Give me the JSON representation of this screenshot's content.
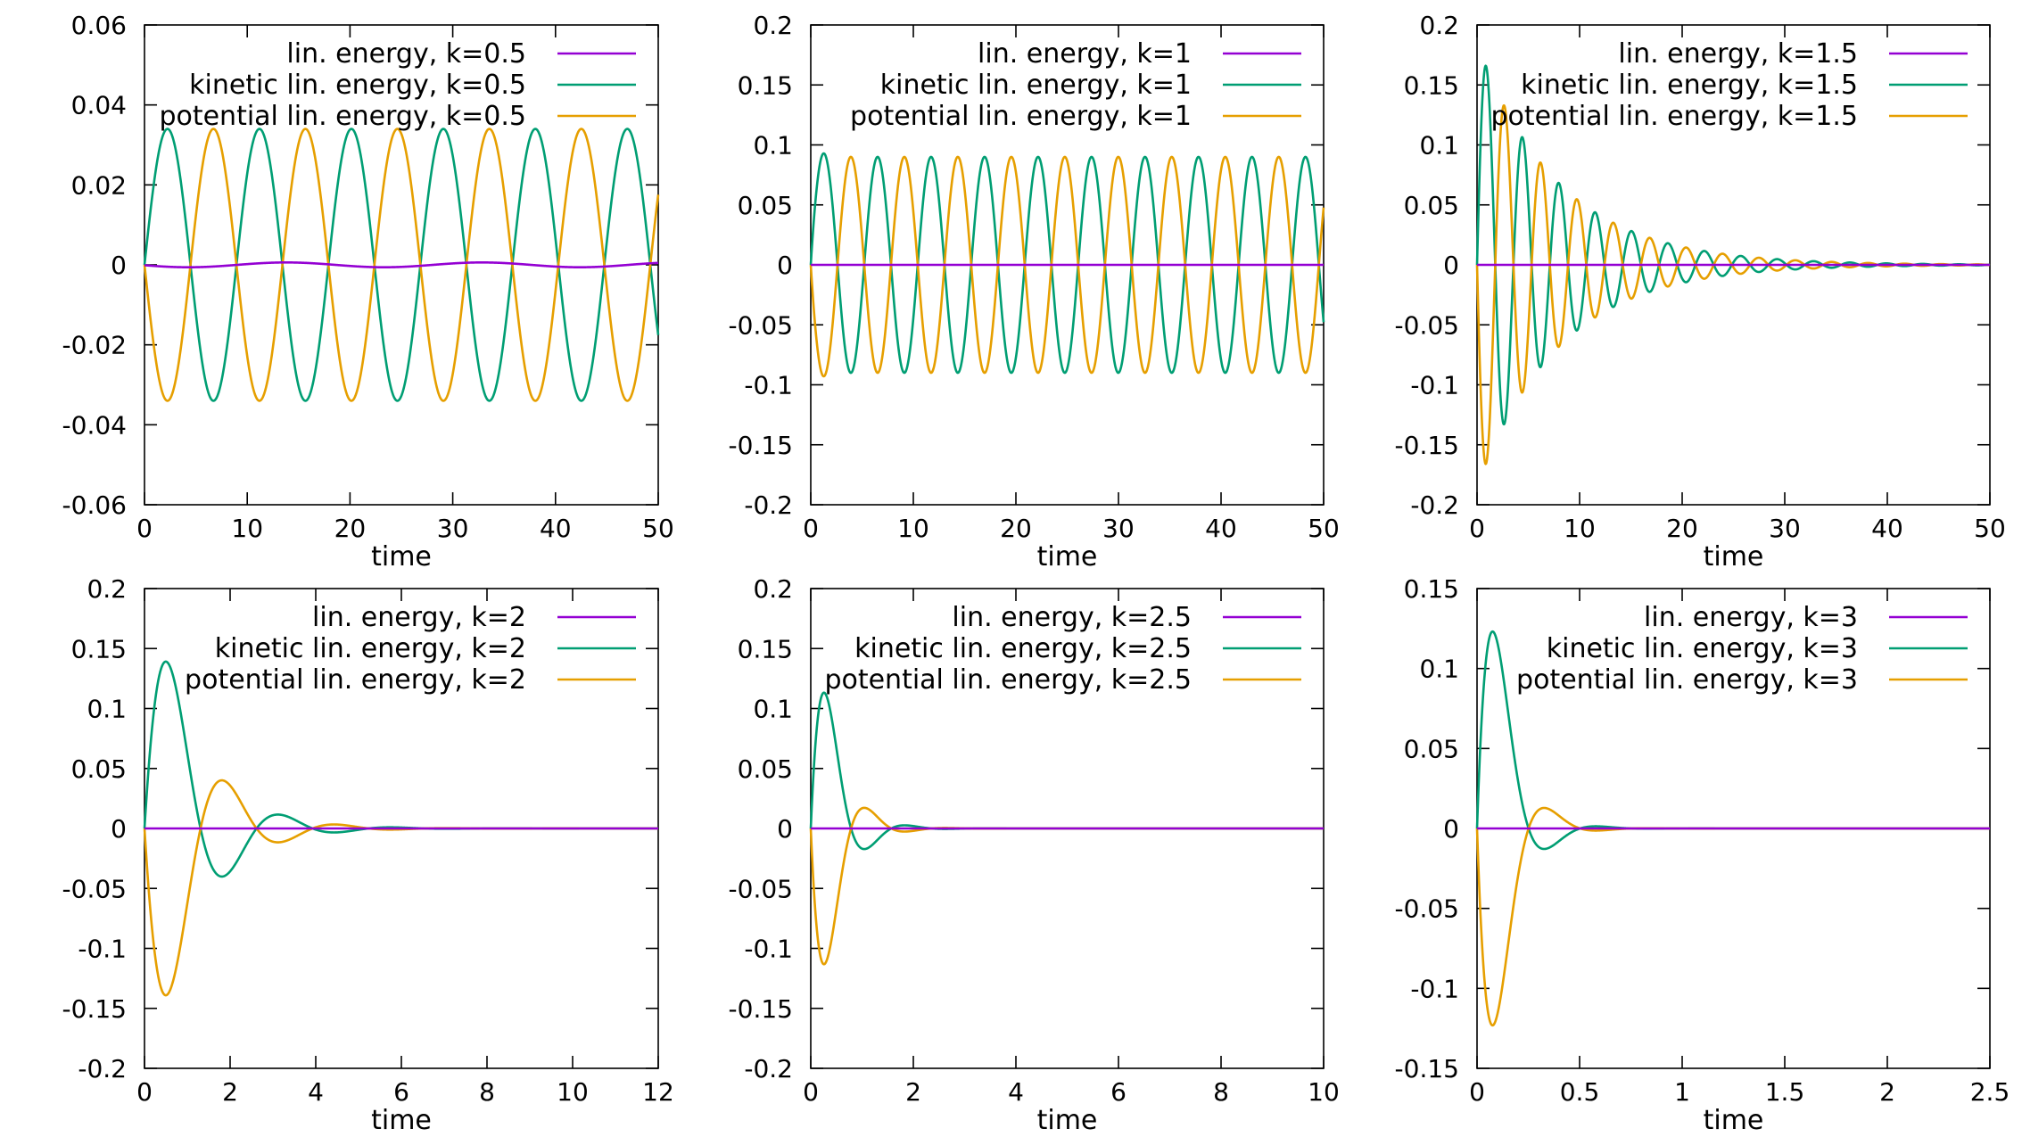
{
  "colors": {
    "total": "#9400d3",
    "kinetic": "#009e73",
    "potential": "#e69f00"
  },
  "chart_data": [
    {
      "type": "line",
      "xlabel": "time",
      "ylabel": "",
      "xlim": [
        0,
        50
      ],
      "ylim": [
        -0.06,
        0.06
      ],
      "xticks": [
        0,
        10,
        20,
        30,
        40,
        50
      ],
      "xtick_labels": [
        "0",
        "10",
        "20",
        "30",
        "40",
        "50"
      ],
      "yticks": [
        -0.06,
        -0.04,
        -0.02,
        0,
        0.02,
        0.04,
        0.06
      ],
      "ytick_labels": [
        "-0.06",
        "-0.04",
        "-0.02",
        "0",
        "0.02",
        "0.04",
        "0.06"
      ],
      "model": {
        "amplitude": 0.034,
        "omega": 0.702,
        "decay": 0.0,
        "phase": 0.0,
        "total_wiggle": 0.0006
      },
      "legend": "top-right",
      "series": [
        {
          "name": "lin. energy, k=0.5",
          "role": "total",
          "color": "#9400d3"
        },
        {
          "name": "kinetic lin. energy, k=0.5",
          "role": "kinetic",
          "color": "#009e73"
        },
        {
          "name": "potential lin. energy, k=0.5",
          "role": "potential",
          "color": "#e69f00"
        }
      ]
    },
    {
      "type": "line",
      "xlabel": "time",
      "ylabel": "",
      "xlim": [
        0,
        50
      ],
      "ylim": [
        -0.2,
        0.2
      ],
      "xticks": [
        0,
        10,
        20,
        30,
        40,
        50
      ],
      "xtick_labels": [
        "0",
        "10",
        "20",
        "30",
        "40",
        "50"
      ],
      "yticks": [
        -0.2,
        -0.15,
        -0.1,
        -0.05,
        0,
        0.05,
        0.1,
        0.15,
        0.2
      ],
      "ytick_labels": [
        "-0.2",
        "-0.15",
        "-0.1",
        "-0.05",
        "0",
        "0.05",
        "0.1",
        "0.15",
        "0.2"
      ],
      "model": {
        "amplitude": 0.09,
        "omega": 1.205,
        "decay": 0.0,
        "phase": 0.0,
        "peak_start": 0.115,
        "peak_tau": 0.6,
        "total_wiggle": 0.0
      },
      "legend": "top-right",
      "series": [
        {
          "name": "lin. energy, k=1",
          "role": "total",
          "color": "#9400d3"
        },
        {
          "name": "kinetic lin. energy, k=1",
          "role": "kinetic",
          "color": "#009e73"
        },
        {
          "name": "potential lin. energy, k=1",
          "role": "potential",
          "color": "#e69f00"
        }
      ]
    },
    {
      "type": "line",
      "xlabel": "time",
      "ylabel": "",
      "xlim": [
        0,
        50
      ],
      "ylim": [
        -0.2,
        0.2
      ],
      "xticks": [
        0,
        10,
        20,
        30,
        40,
        50
      ],
      "xtick_labels": [
        "0",
        "10",
        "20",
        "30",
        "40",
        "50"
      ],
      "yticks": [
        -0.2,
        -0.15,
        -0.1,
        -0.05,
        0,
        0.05,
        0.1,
        0.15,
        0.2
      ],
      "ytick_labels": [
        "-0.2",
        "-0.15",
        "-0.1",
        "-0.05",
        "0",
        "0.05",
        "0.1",
        "0.15",
        "0.2"
      ],
      "model": {
        "amplitude": 0.185,
        "omega": 1.77,
        "decay": 0.125,
        "phase": 0.0,
        "total_wiggle": 0.0
      },
      "legend": "top-right",
      "series": [
        {
          "name": "lin. energy, k=1.5",
          "role": "total",
          "color": "#9400d3"
        },
        {
          "name": "kinetic lin. energy, k=1.5",
          "role": "kinetic",
          "color": "#009e73"
        },
        {
          "name": "potential lin. energy, k=1.5",
          "role": "potential",
          "color": "#e69f00"
        }
      ]
    },
    {
      "type": "line",
      "xlabel": "time",
      "ylabel": "",
      "xlim": [
        0,
        12
      ],
      "ylim": [
        -0.2,
        0.2
      ],
      "xticks": [
        0,
        2,
        4,
        6,
        8,
        10,
        12
      ],
      "xtick_labels": [
        "0",
        "2",
        "4",
        "6",
        "8",
        "10",
        "12"
      ],
      "yticks": [
        -0.2,
        -0.15,
        -0.1,
        -0.05,
        0,
        0.05,
        0.1,
        0.15,
        0.2
      ],
      "ytick_labels": [
        "-0.2",
        "-0.15",
        "-0.1",
        "-0.05",
        "0",
        "0.05",
        "0.1",
        "0.15",
        "0.2"
      ],
      "model": {
        "amplitude": 0.24,
        "omega": 2.4,
        "decay": 0.95,
        "phase": 0.0,
        "total_wiggle": 0.0
      },
      "legend": "top-right",
      "series": [
        {
          "name": "lin. energy, k=2",
          "role": "total",
          "color": "#9400d3"
        },
        {
          "name": "kinetic lin. energy, k=2",
          "role": "kinetic",
          "color": "#009e73"
        },
        {
          "name": "potential lin. energy, k=2",
          "role": "potential",
          "color": "#e69f00"
        }
      ]
    },
    {
      "type": "line",
      "xlabel": "time",
      "ylabel": "",
      "xlim": [
        0,
        10
      ],
      "ylim": [
        -0.2,
        0.2
      ],
      "xticks": [
        0,
        2,
        4,
        6,
        8,
        10
      ],
      "xtick_labels": [
        "0",
        "2",
        "4",
        "6",
        "8",
        "10"
      ],
      "yticks": [
        -0.2,
        -0.15,
        -0.1,
        -0.05,
        0,
        0.05,
        0.1,
        0.15,
        0.2
      ],
      "ytick_labels": [
        "-0.2",
        "-0.15",
        "-0.1",
        "-0.05",
        "0",
        "0.05",
        "0.1",
        "0.15",
        "0.2"
      ],
      "model": {
        "amplitude": 0.245,
        "omega": 4.0,
        "decay": 2.4,
        "phase": 0.0,
        "total_wiggle": 0.0
      },
      "legend": "top-right",
      "series": [
        {
          "name": "lin. energy, k=2.5",
          "role": "total",
          "color": "#9400d3"
        },
        {
          "name": "kinetic lin. energy, k=2.5",
          "role": "kinetic",
          "color": "#009e73"
        },
        {
          "name": "potential lin. energy, k=2.5",
          "role": "potential",
          "color": "#e69f00"
        }
      ]
    },
    {
      "type": "line",
      "xlabel": "time",
      "ylabel": "",
      "xlim": [
        0,
        2.5
      ],
      "ylim": [
        -0.15,
        0.15
      ],
      "xticks": [
        0,
        0.5,
        1,
        1.5,
        2,
        2.5
      ],
      "xtick_labels": [
        "0",
        "0.5",
        "1",
        "1.5",
        "2",
        "2.5"
      ],
      "yticks": [
        -0.15,
        -0.1,
        -0.05,
        0,
        0.05,
        0.1,
        0.15
      ],
      "ytick_labels": [
        "-0.15",
        "-0.1",
        "-0.05",
        "0",
        "0.05",
        "0.1",
        "0.15"
      ],
      "model": {
        "amplitude": 0.3,
        "omega": 12.5,
        "decay": 9.0,
        "phase": 0.0,
        "total_wiggle": 0.0
      },
      "legend": "top-right",
      "series": [
        {
          "name": "lin. energy, k=3",
          "role": "total",
          "color": "#9400d3"
        },
        {
          "name": "kinetic lin. energy, k=3",
          "role": "kinetic",
          "color": "#009e73"
        },
        {
          "name": "potential lin. energy, k=3",
          "role": "potential",
          "color": "#e69f00"
        }
      ]
    }
  ]
}
